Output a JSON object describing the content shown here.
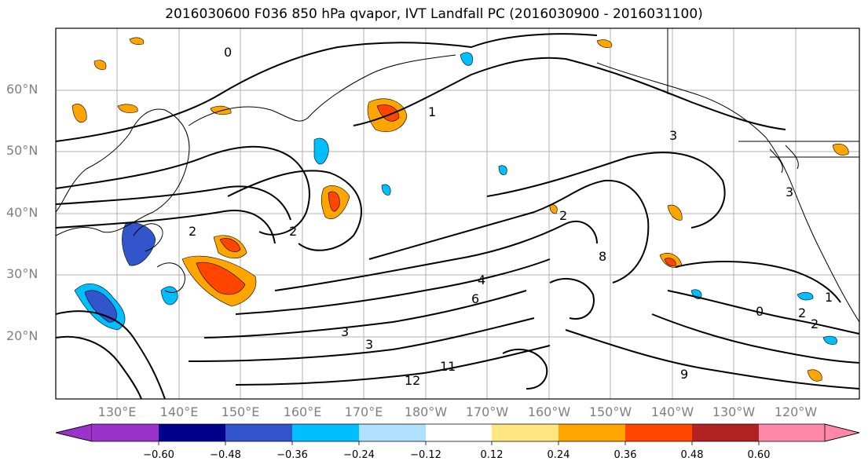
{
  "title": "2016030600 F036 850 hPa qvapor, IVT Landfall PC (2016030900 - 2016031100)",
  "map": {
    "lat_labels": [
      "60°N",
      "50°N",
      "40°N",
      "30°N",
      "20°N"
    ],
    "lon_labels": [
      "130°E",
      "140°E",
      "150°E",
      "160°E",
      "170°E",
      "180°W",
      "170°W",
      "160°W",
      "150°W",
      "140°W",
      "130°W",
      "120°W"
    ],
    "contour_labels": [
      "0",
      "1",
      "2",
      "3",
      "3",
      "4",
      "6",
      "8",
      "9",
      "11",
      "12",
      "2",
      "2",
      "3",
      "1",
      "0",
      "2",
      "2",
      "3"
    ]
  },
  "colorbar": {
    "colors": [
      "#9933cc",
      "#00008b",
      "#3355cc",
      "#00bfff",
      "#b0e0ff",
      "#ffffff",
      "#ffe680",
      "#ffa500",
      "#ff4500",
      "#b22222",
      "#ff88aa"
    ],
    "ticks": [
      "−0.60",
      "−0.48",
      "−0.36",
      "−0.24",
      "−0.12",
      "0.12",
      "0.24",
      "0.36",
      "0.48",
      "0.60"
    ]
  }
}
